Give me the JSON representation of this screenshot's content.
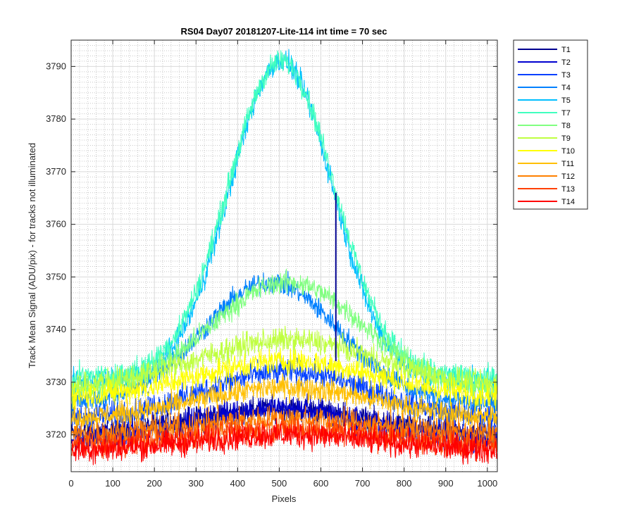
{
  "chart_data": {
    "type": "line",
    "title": "RS04 Day07 20181207-Lite-114 int time = 70 sec",
    "xlabel": "Pixels",
    "ylabel": "Track Mean Signal (ADU/pix) - for tracks not illuminated",
    "xlim": [
      0,
      1024
    ],
    "ylim": [
      3713,
      3795
    ],
    "x_ticks": [
      0,
      100,
      200,
      300,
      400,
      500,
      600,
      700,
      800,
      900,
      1000
    ],
    "y_ticks": [
      3720,
      3730,
      3740,
      3750,
      3760,
      3770,
      3780,
      3790
    ],
    "grid": "major-solid, minor-dotted",
    "legend_position": "outside-right",
    "series": [
      {
        "name": "T1",
        "color": "#00008f",
        "peak_x": 500,
        "peak": 3725,
        "edge": 3720,
        "width": 290,
        "noise": 1.6
      },
      {
        "name": "T2",
        "color": "#0000d0",
        "peak_x": 500,
        "peak": 3725,
        "edge": 3719,
        "width": 290,
        "noise": 1.8
      },
      {
        "name": "T3",
        "color": "#0040ff",
        "peak_x": 520,
        "peak": 3732,
        "edge": 3723,
        "width": 280,
        "noise": 1.7
      },
      {
        "name": "T4",
        "color": "#0080ff",
        "peak_x": 480,
        "peak": 3749,
        "edge": 3726,
        "width": 230,
        "noise": 1.5
      },
      {
        "name": "T5",
        "color": "#00bfff",
        "peak_x": 505,
        "peak": 3791,
        "edge": 3730,
        "width": 175,
        "noise": 1.6
      },
      {
        "name": "T7",
        "color": "#40ffbf",
        "peak_x": 505,
        "peak": 3791,
        "edge": 3731,
        "width": 180,
        "noise": 1.6
      },
      {
        "name": "T8",
        "color": "#80ff80",
        "peak_x": 520,
        "peak": 3749,
        "edge": 3728,
        "width": 260,
        "noise": 1.5
      },
      {
        "name": "T9",
        "color": "#bfff40",
        "peak_x": 520,
        "peak": 3738,
        "edge": 3729,
        "width": 300,
        "noise": 1.7
      },
      {
        "name": "T10",
        "color": "#ffff00",
        "peak_x": 520,
        "peak": 3734,
        "edge": 3727,
        "width": 300,
        "noise": 1.7
      },
      {
        "name": "T11",
        "color": "#ffbf00",
        "peak_x": 520,
        "peak": 3729,
        "edge": 3723,
        "width": 300,
        "noise": 1.6
      },
      {
        "name": "T12",
        "color": "#ff8000",
        "peak_x": 520,
        "peak": 3723,
        "edge": 3720,
        "width": 300,
        "noise": 1.8
      },
      {
        "name": "T13",
        "color": "#ff4000",
        "peak_x": 520,
        "peak": 3721,
        "edge": 3718,
        "width": 300,
        "noise": 1.8
      },
      {
        "name": "T14",
        "color": "#ff0000",
        "peak_x": 520,
        "peak": 3720,
        "edge": 3717,
        "width": 300,
        "noise": 1.8
      }
    ],
    "spike": {
      "series": "T1",
      "x": 636,
      "y_low": 3734,
      "y_high": 3766
    }
  }
}
